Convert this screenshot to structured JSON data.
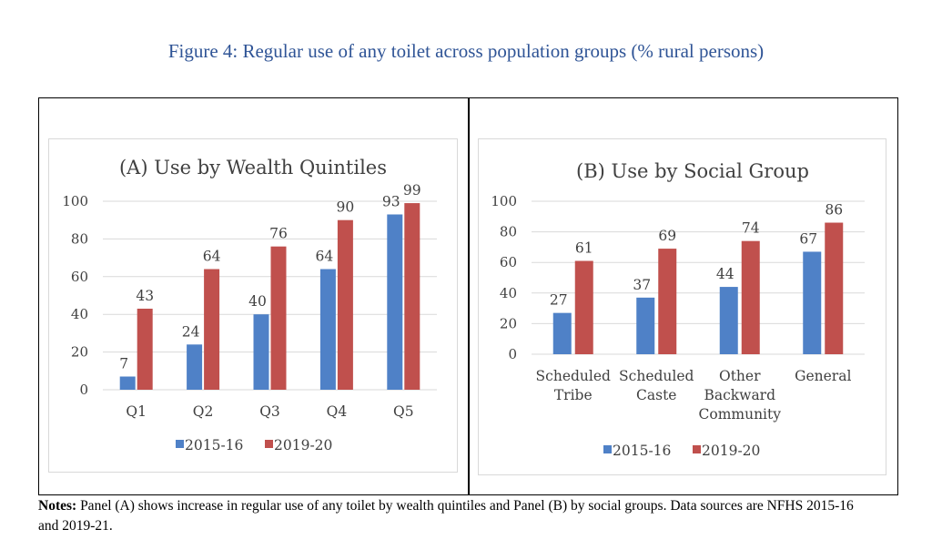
{
  "figure_title": "Figure 4: Regular use of any toilet across population groups (% rural persons)",
  "colors": {
    "series_2015": "#4f81c7",
    "series_2019": "#c0504d",
    "grid": "#d9d9d9",
    "title": "#2f5496"
  },
  "notes": {
    "label": "Notes:",
    "text": " Panel (A) shows increase in regular use of any toilet by wealth quintiles and Panel (B) by social groups. Data sources are NFHS 2015-16 and 2019-21."
  },
  "chart_data": [
    {
      "type": "bar",
      "title": "(A) Use by Wealth Quintiles",
      "categories": [
        "Q1",
        "Q2",
        "Q3",
        "Q4",
        "Q5"
      ],
      "series": [
        {
          "name": "2015-16",
          "values": [
            7,
            24,
            40,
            64,
            93
          ]
        },
        {
          "name": "2019-20",
          "values": [
            43,
            64,
            76,
            90,
            99
          ]
        }
      ],
      "ylim": [
        0,
        100
      ],
      "yticks": [
        0,
        20,
        40,
        60,
        80,
        100
      ],
      "xlabel": "",
      "ylabel": "",
      "legend": "bottom"
    },
    {
      "type": "bar",
      "title": "(B) Use by Social Group",
      "categories": [
        [
          "Scheduled",
          "Tribe"
        ],
        [
          "Scheduled",
          "Caste"
        ],
        [
          "Other",
          "Backward",
          "Community"
        ],
        [
          "General"
        ]
      ],
      "series": [
        {
          "name": "2015-16",
          "values": [
            27,
            37,
            44,
            67
          ]
        },
        {
          "name": "2019-20",
          "values": [
            61,
            69,
            74,
            86
          ]
        }
      ],
      "ylim": [
        0,
        100
      ],
      "yticks": [
        0,
        20,
        40,
        60,
        80,
        100
      ],
      "xlabel": "",
      "ylabel": "",
      "legend": "bottom"
    }
  ]
}
